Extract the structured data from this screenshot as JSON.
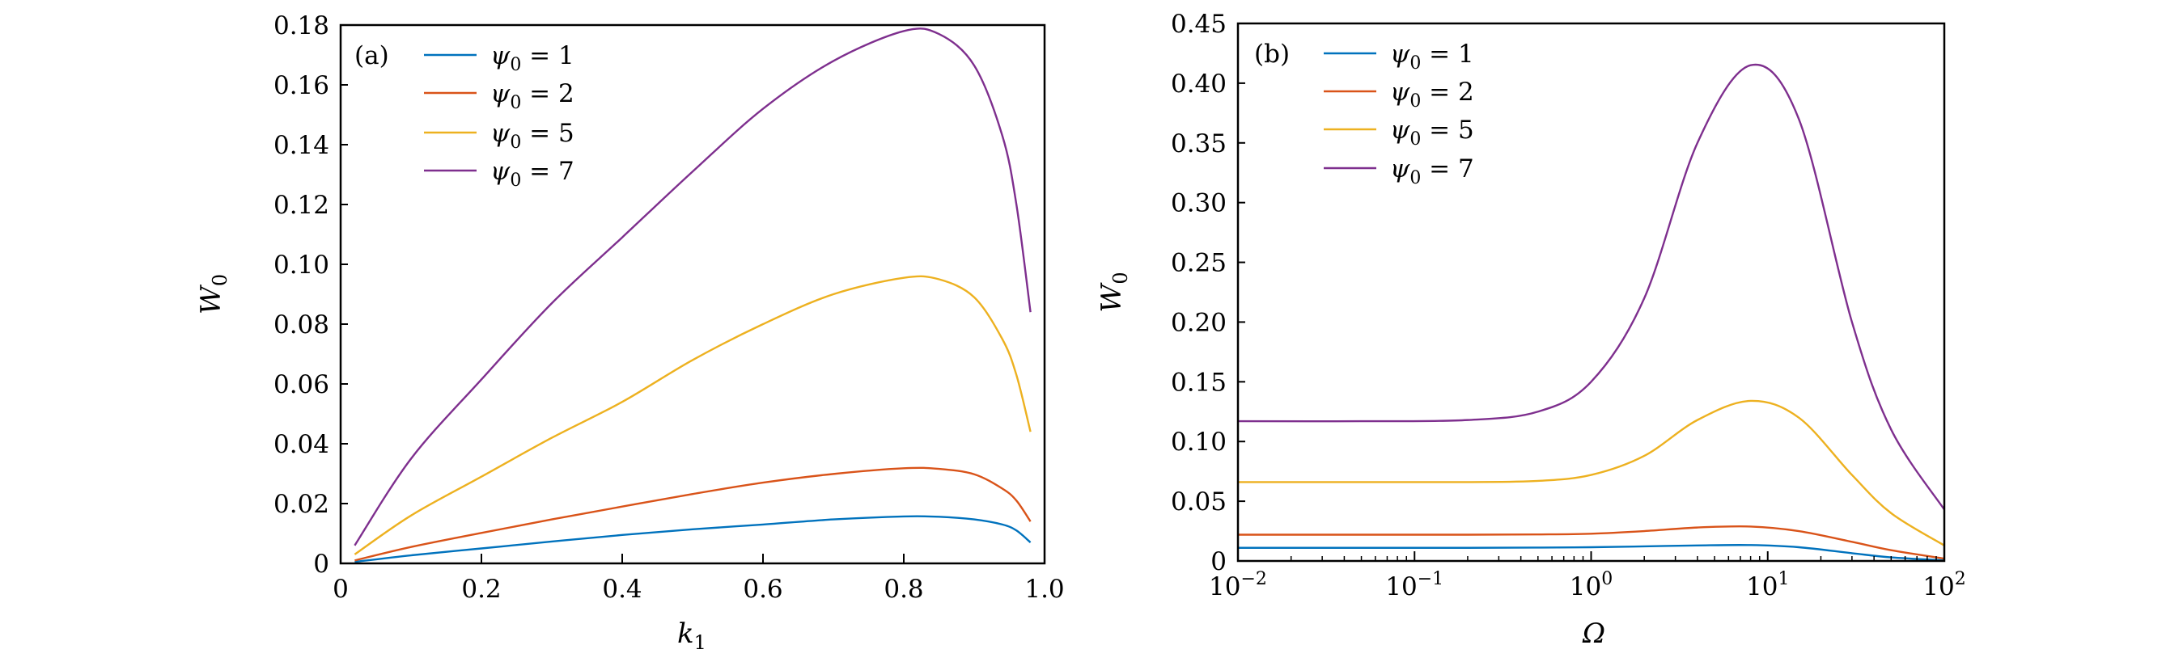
{
  "chart_data": [
    {
      "type": "line",
      "panel_label": "(a)",
      "xlabel": "k",
      "xlabel_sub": "1",
      "ylabel": "W",
      "ylabel_sub": "0",
      "xscale": "linear",
      "xlim": [
        0,
        1.0
      ],
      "ylim": [
        0,
        0.18
      ],
      "xticks": [
        0,
        0.2,
        0.4,
        0.6,
        0.8,
        1.0
      ],
      "xtick_labels": [
        "0",
        "0.2",
        "0.4",
        "0.6",
        "0.8",
        "1.0"
      ],
      "yticks": [
        0,
        0.02,
        0.04,
        0.06,
        0.08,
        0.1,
        0.12,
        0.14,
        0.16,
        0.18
      ],
      "ytick_labels": [
        "0",
        "0.02",
        "0.04",
        "0.06",
        "0.08",
        "0.10",
        "0.12",
        "0.14",
        "0.16",
        "0.18"
      ],
      "grid": false,
      "legend_position": "top-left",
      "x": [
        0.02,
        0.1,
        0.2,
        0.3,
        0.4,
        0.5,
        0.6,
        0.7,
        0.8,
        0.85,
        0.9,
        0.94,
        0.96,
        0.98
      ],
      "series": [
        {
          "name": "ψ0 = 1",
          "legend_main": "ψ",
          "legend_sub": "0",
          "legend_rest": " = 1",
          "color": "#0072BD",
          "values": [
            0.0005,
            0.0027,
            0.005,
            0.0073,
            0.0095,
            0.0114,
            0.013,
            0.0147,
            0.0157,
            0.0156,
            0.0147,
            0.013,
            0.011,
            0.007
          ]
        },
        {
          "name": "ψ0 = 2",
          "legend_main": "ψ",
          "legend_sub": "0",
          "legend_rest": " = 2",
          "color": "#D95319",
          "values": [
            0.001,
            0.0055,
            0.0102,
            0.0147,
            0.019,
            0.0232,
            0.027,
            0.0299,
            0.0318,
            0.0316,
            0.0298,
            0.025,
            0.021,
            0.014
          ]
        },
        {
          "name": "ψ0 = 5",
          "legend_main": "ψ",
          "legend_sub": "0",
          "legend_rest": " = 5",
          "color": "#EDB120",
          "values": [
            0.003,
            0.016,
            0.029,
            0.042,
            0.054,
            0.068,
            0.08,
            0.09,
            0.0955,
            0.095,
            0.089,
            0.075,
            0.063,
            0.044
          ]
        },
        {
          "name": "ψ0 = 7",
          "legend_main": "ψ",
          "legend_sub": "0",
          "legend_rest": " = 7",
          "color": "#7E2F8E",
          "values": [
            0.006,
            0.035,
            0.0615,
            0.087,
            0.109,
            0.131,
            0.152,
            0.168,
            0.178,
            0.177,
            0.1665,
            0.143,
            0.12,
            0.084
          ]
        }
      ]
    },
    {
      "type": "line",
      "panel_label": "(b)",
      "xlabel": "Ω",
      "xlabel_sub": "",
      "ylabel": "W",
      "ylabel_sub": "0",
      "xscale": "log",
      "xlim": [
        0.01,
        100
      ],
      "ylim": [
        0,
        0.45
      ],
      "xticks": [
        0.01,
        0.1,
        1,
        10,
        100
      ],
      "xtick_labels": [
        {
          "base": "10",
          "exp": "−2"
        },
        {
          "base": "10",
          "exp": "−1"
        },
        {
          "base": "10",
          "exp": "0"
        },
        {
          "base": "10",
          "exp": "1"
        },
        {
          "base": "10",
          "exp": "2"
        }
      ],
      "yticks": [
        0,
        0.05,
        0.1,
        0.15,
        0.2,
        0.25,
        0.3,
        0.35,
        0.4,
        0.45
      ],
      "ytick_labels": [
        "0",
        "0.05",
        "0.10",
        "0.15",
        "0.20",
        "0.25",
        "0.30",
        "0.35",
        "0.40",
        "0.45"
      ],
      "grid": false,
      "legend_position": "top-left",
      "x": [
        0.01,
        0.05,
        0.2,
        0.5,
        1,
        2,
        4,
        8,
        15,
        30,
        50,
        100
      ],
      "series": [
        {
          "name": "ψ0 = 1",
          "legend_main": "ψ",
          "legend_sub": "0",
          "legend_rest": " = 1",
          "color": "#0072BD",
          "values": [
            0.011,
            0.011,
            0.011,
            0.0112,
            0.0115,
            0.0122,
            0.013,
            0.0133,
            0.0115,
            0.0065,
            0.003,
            0.0005
          ]
        },
        {
          "name": "ψ0 = 2",
          "legend_main": "ψ",
          "legend_sub": "0",
          "legend_rest": " = 2",
          "color": "#D95319",
          "values": [
            0.022,
            0.022,
            0.022,
            0.0222,
            0.0228,
            0.025,
            0.028,
            0.0288,
            0.025,
            0.016,
            0.009,
            0.002
          ]
        },
        {
          "name": "ψ0 = 5",
          "legend_main": "ψ",
          "legend_sub": "0",
          "legend_rest": " = 5",
          "color": "#EDB120",
          "values": [
            0.066,
            0.066,
            0.066,
            0.067,
            0.072,
            0.088,
            0.118,
            0.134,
            0.12,
            0.072,
            0.04,
            0.013
          ]
        },
        {
          "name": "ψ0 = 7",
          "legend_main": "ψ",
          "legend_sub": "0",
          "legend_rest": " = 7",
          "color": "#7E2F8E",
          "values": [
            0.117,
            0.117,
            0.118,
            0.125,
            0.15,
            0.22,
            0.35,
            0.415,
            0.37,
            0.2,
            0.11,
            0.043
          ]
        }
      ]
    }
  ]
}
